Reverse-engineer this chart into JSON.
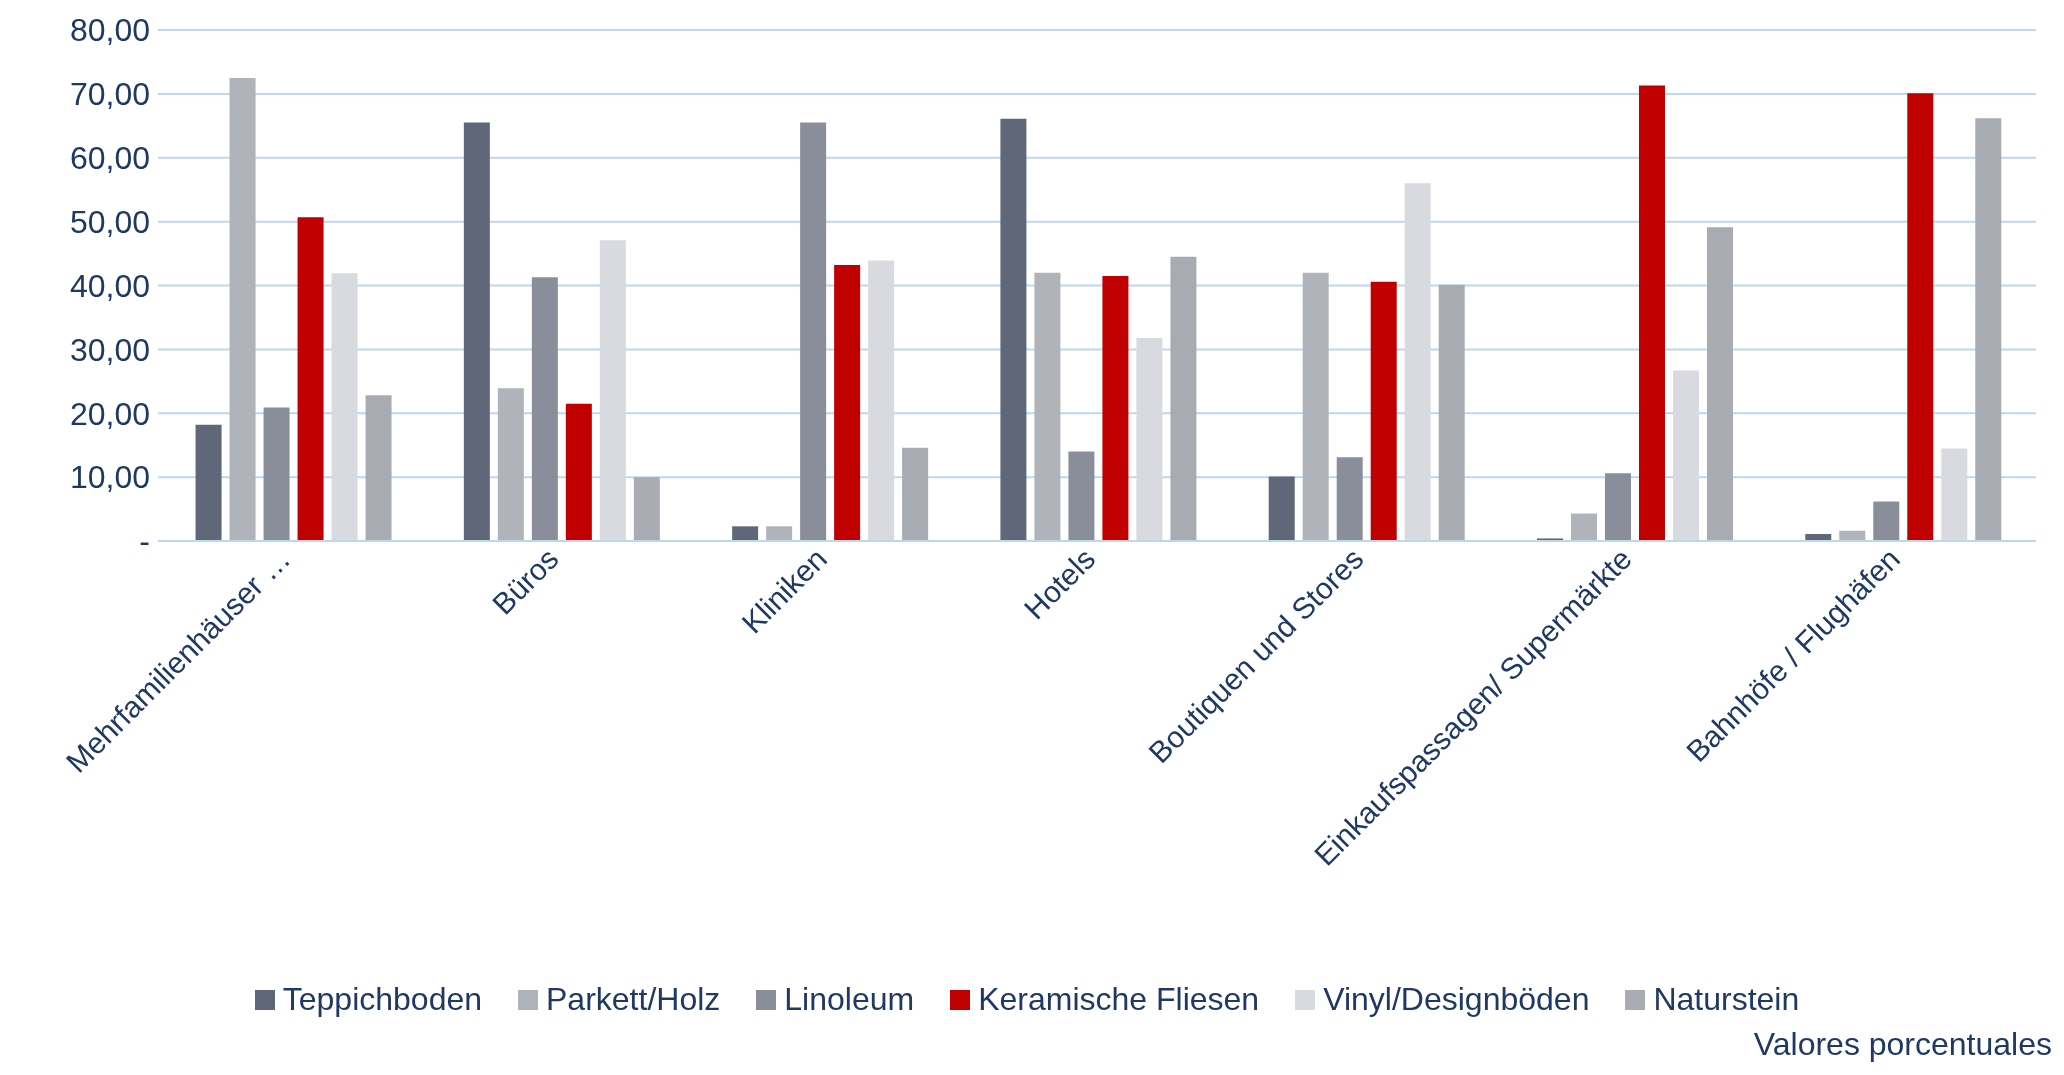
{
  "chart_data": {
    "type": "bar",
    "categories": [
      "Mehrfamilienhäuser …",
      "Büros",
      "Kliniken",
      "Hotels",
      "Boutiquen und Stores",
      "Einkaufspassagen/ Supermärkte",
      "Bahnhöfe / Flughäfen"
    ],
    "series": [
      {
        "name": "Teppichboden",
        "color": "#5f6779",
        "values": [
          18.2,
          65.5,
          2.3,
          66.1,
          10.1,
          0.4,
          1.1
        ]
      },
      {
        "name": "Parkett/Holz",
        "color": "#b1b3bb",
        "values": [
          72.5,
          23.9,
          2.3,
          42.0,
          42.0,
          4.3,
          1.6
        ]
      },
      {
        "name": "Linoleum",
        "color": "#8a8e9a",
        "values": [
          20.9,
          41.3,
          65.5,
          14.0,
          13.1,
          10.6,
          6.2
        ]
      },
      {
        "name": "Keramische Fliesen",
        "color": "#c00000",
        "values": [
          50.7,
          21.5,
          43.2,
          41.5,
          40.6,
          71.3,
          70.1
        ]
      },
      {
        "name": "Vinyl/Designböden",
        "color": "#d9dadf",
        "values": [
          41.9,
          47.1,
          43.9,
          31.8,
          56.0,
          26.7,
          14.5
        ]
      },
      {
        "name": "Naturstein",
        "color": "#a9abb3",
        "values": [
          22.8,
          10.0,
          14.6,
          44.5,
          40.1,
          49.1,
          66.2
        ]
      }
    ],
    "ylim": [
      0,
      80
    ],
    "yticks": [
      {
        "value": 0,
        "label": "-"
      },
      {
        "value": 10,
        "label": "10,00"
      },
      {
        "value": 20,
        "label": "20,00"
      },
      {
        "value": 30,
        "label": "30,00"
      },
      {
        "value": 40,
        "label": "40,00"
      },
      {
        "value": 50,
        "label": "50,00"
      },
      {
        "value": 60,
        "label": "60,00"
      },
      {
        "value": 70,
        "label": "70,00"
      },
      {
        "value": 80,
        "label": "80,00"
      }
    ],
    "grid": "y",
    "legend": "bottom",
    "annotations": [
      "Valores porcentuales"
    ]
  }
}
